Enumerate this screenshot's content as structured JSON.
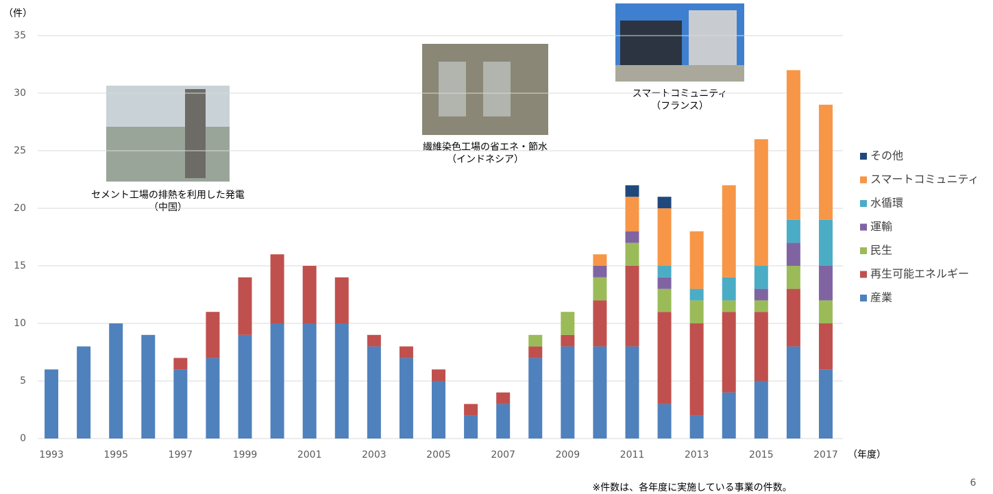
{
  "chart_data": {
    "type": "stacked_bar",
    "y_label": "（件）",
    "x_label": "（年度）",
    "footnote": "※件数は、各年度に実施している事業の件数。",
    "page_number": "6",
    "annotations": [
      [
        "セメント工場の排熱を利用した発電",
        "（中国）"
      ],
      [
        "繊維染色工場の省エネ・節水",
        "（インドネシア）"
      ],
      [
        "スマートコミュニティ",
        "（フランス）"
      ]
    ],
    "categories": [
      "1993",
      null,
      "1995",
      null,
      "1997",
      null,
      "1999",
      null,
      "2001",
      null,
      "2003",
      null,
      "2005",
      null,
      "2007",
      null,
      "2009",
      null,
      "2011",
      null,
      "2013",
      null,
      "2015",
      null,
      "2017"
    ],
    "ylim": [
      0,
      35
    ],
    "yticks": [
      0,
      5,
      10,
      15,
      20,
      25,
      30,
      35
    ],
    "grid": true,
    "series": [
      {
        "name": "産業",
        "color": "#4f81bd",
        "values": [
          6,
          8,
          10,
          9,
          6,
          7,
          9,
          10,
          10,
          10,
          8,
          7,
          5,
          2,
          3,
          7,
          8,
          8,
          8,
          3,
          2,
          4,
          5,
          8,
          6
        ]
      },
      {
        "name": "再生可能エネルギー",
        "color": "#c0504d",
        "values": [
          0,
          0,
          0,
          0,
          1,
          4,
          5,
          6,
          5,
          4,
          1,
          1,
          1,
          1,
          1,
          1,
          1,
          4,
          7,
          8,
          8,
          7,
          6,
          5,
          4
        ]
      },
      {
        "name": "民生",
        "color": "#9bbb59",
        "values": [
          0,
          0,
          0,
          0,
          0,
          0,
          0,
          0,
          0,
          0,
          0,
          0,
          0,
          0,
          0,
          1,
          2,
          2,
          2,
          2,
          2,
          1,
          1,
          2,
          2
        ]
      },
      {
        "name": "運輸",
        "color": "#8064a2",
        "values": [
          0,
          0,
          0,
          0,
          0,
          0,
          0,
          0,
          0,
          0,
          0,
          0,
          0,
          0,
          0,
          0,
          0,
          1,
          1,
          1,
          0,
          0,
          1,
          2,
          3
        ]
      },
      {
        "name": "水循環",
        "color": "#4bacc6",
        "values": [
          0,
          0,
          0,
          0,
          0,
          0,
          0,
          0,
          0,
          0,
          0,
          0,
          0,
          0,
          0,
          0,
          0,
          0,
          0,
          1,
          1,
          2,
          2,
          2,
          4
        ]
      },
      {
        "name": "スマートコミュニティ",
        "color": "#f79646",
        "values": [
          0,
          0,
          0,
          0,
          0,
          0,
          0,
          0,
          0,
          0,
          0,
          0,
          0,
          0,
          0,
          0,
          0,
          1,
          3,
          5,
          5,
          8,
          11,
          13,
          10
        ]
      },
      {
        "name": "その他",
        "color": "#1f497d",
        "values": [
          0,
          0,
          0,
          0,
          0,
          0,
          0,
          0,
          0,
          0,
          0,
          0,
          0,
          0,
          0,
          0,
          0,
          0,
          1,
          1,
          0,
          0,
          0,
          0,
          0
        ]
      }
    ]
  }
}
